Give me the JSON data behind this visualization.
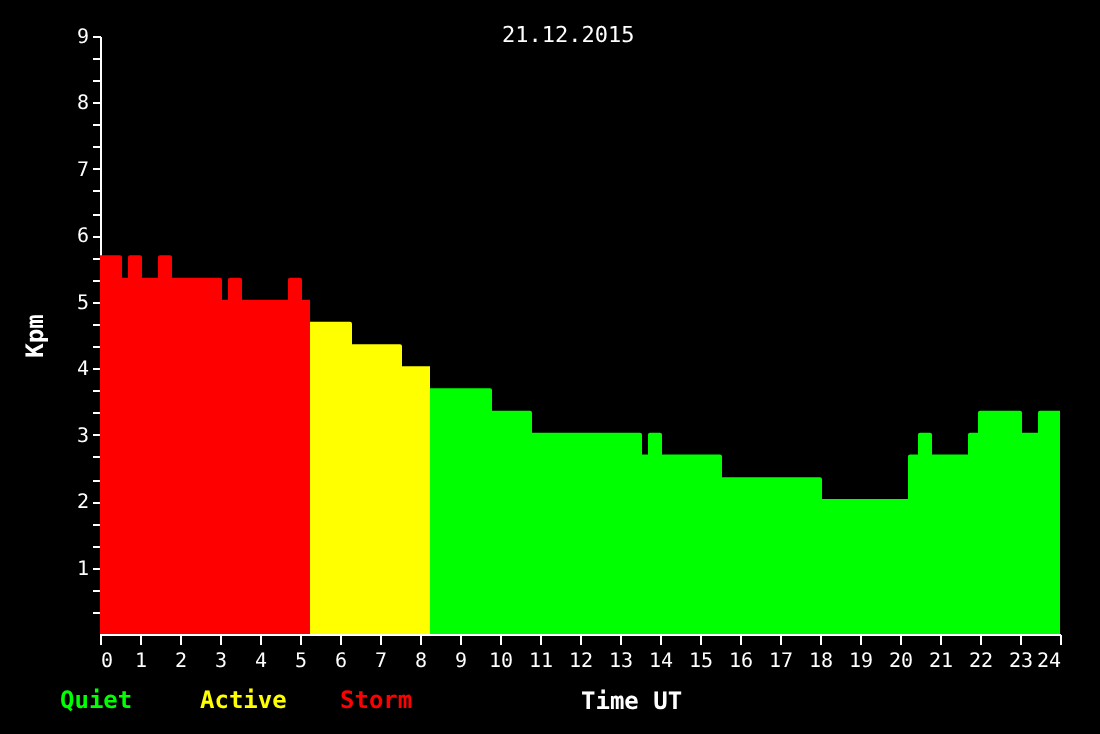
{
  "chart_data": {
    "type": "area",
    "title": "21.12.2015",
    "xlabel": "Time UT",
    "ylabel": "Kpm",
    "series": [
      {
        "name": "Quiet",
        "color": "#00ff00",
        "x": [
          8.25,
          9.75,
          9.75,
          10.75,
          10.75,
          13.5,
          13.5,
          13.75,
          13.75,
          14,
          14,
          15.5,
          15.5,
          18,
          18,
          20.25,
          20.25,
          20.5,
          20.5,
          20.75,
          20.75,
          21.75,
          21.75,
          22,
          22,
          23,
          23,
          23.5,
          23.5,
          24
        ],
        "values": [
          3.67,
          3.67,
          3.33,
          3.33,
          3,
          3,
          2.67,
          2.67,
          3,
          3,
          2.67,
          2.67,
          2.33,
          2.33,
          2,
          2,
          2.67,
          2.67,
          3,
          3,
          2.67,
          2.67,
          3,
          3,
          3.33,
          3.33,
          3,
          3,
          3.33,
          3.33
        ]
      },
      {
        "name": "Active",
        "color": "#ffff00",
        "x": [
          5.25,
          6.25,
          6.25,
          7.5,
          7.5,
          8.25
        ],
        "values": [
          4.67,
          4.67,
          4.33,
          4.33,
          4,
          4
        ]
      },
      {
        "name": "Storm",
        "color": "#ff0000",
        "x": [
          0,
          0.5,
          0.5,
          0.75,
          0.75,
          1,
          1,
          1.5,
          1.5,
          1.75,
          1.75,
          3,
          3,
          3.25,
          3.25,
          3.5,
          3.5,
          4.75,
          4.75,
          5,
          5,
          5.25
        ],
        "values": [
          5.67,
          5.67,
          5.33,
          5.33,
          5.67,
          5.67,
          5.33,
          5.33,
          5.67,
          5.67,
          5.33,
          5.33,
          5,
          5,
          5.33,
          5.33,
          5,
          5,
          5.33,
          5.33,
          5,
          5
        ]
      }
    ],
    "xlim": [
      0,
      24
    ],
    "xticks": [
      0,
      1,
      2,
      3,
      4,
      5,
      6,
      7,
      8,
      9,
      10,
      11,
      12,
      13,
      14,
      15,
      16,
      17,
      18,
      19,
      20,
      21,
      22,
      23,
      24
    ],
    "ylim": [
      0,
      9
    ],
    "yticks": [
      {
        "value": 0.33,
        "label": null
      },
      {
        "value": 0.67,
        "label": null
      },
      1,
      {
        "value": 1.33,
        "label": null
      },
      {
        "value": 1.67,
        "label": null
      },
      2,
      {
        "value": 2.33,
        "label": null
      },
      {
        "value": 2.67,
        "label": null
      },
      3,
      {
        "value": 3.33,
        "label": null
      },
      {
        "value": 3.67,
        "label": null
      },
      4,
      {
        "value": 4.33,
        "label": null
      },
      {
        "value": 4.67,
        "label": null
      },
      5,
      {
        "value": 5.33,
        "label": null
      },
      {
        "value": 5.67,
        "label": null
      },
      6,
      {
        "value": 6.33,
        "label": null
      },
      {
        "value": 6.67,
        "label": null
      },
      7,
      {
        "value": 7.33,
        "label": null
      },
      {
        "value": 7.67,
        "label": null
      },
      8,
      {
        "value": 8.33,
        "label": null
      },
      {
        "value": 8.67,
        "label": null
      },
      9
    ]
  }
}
